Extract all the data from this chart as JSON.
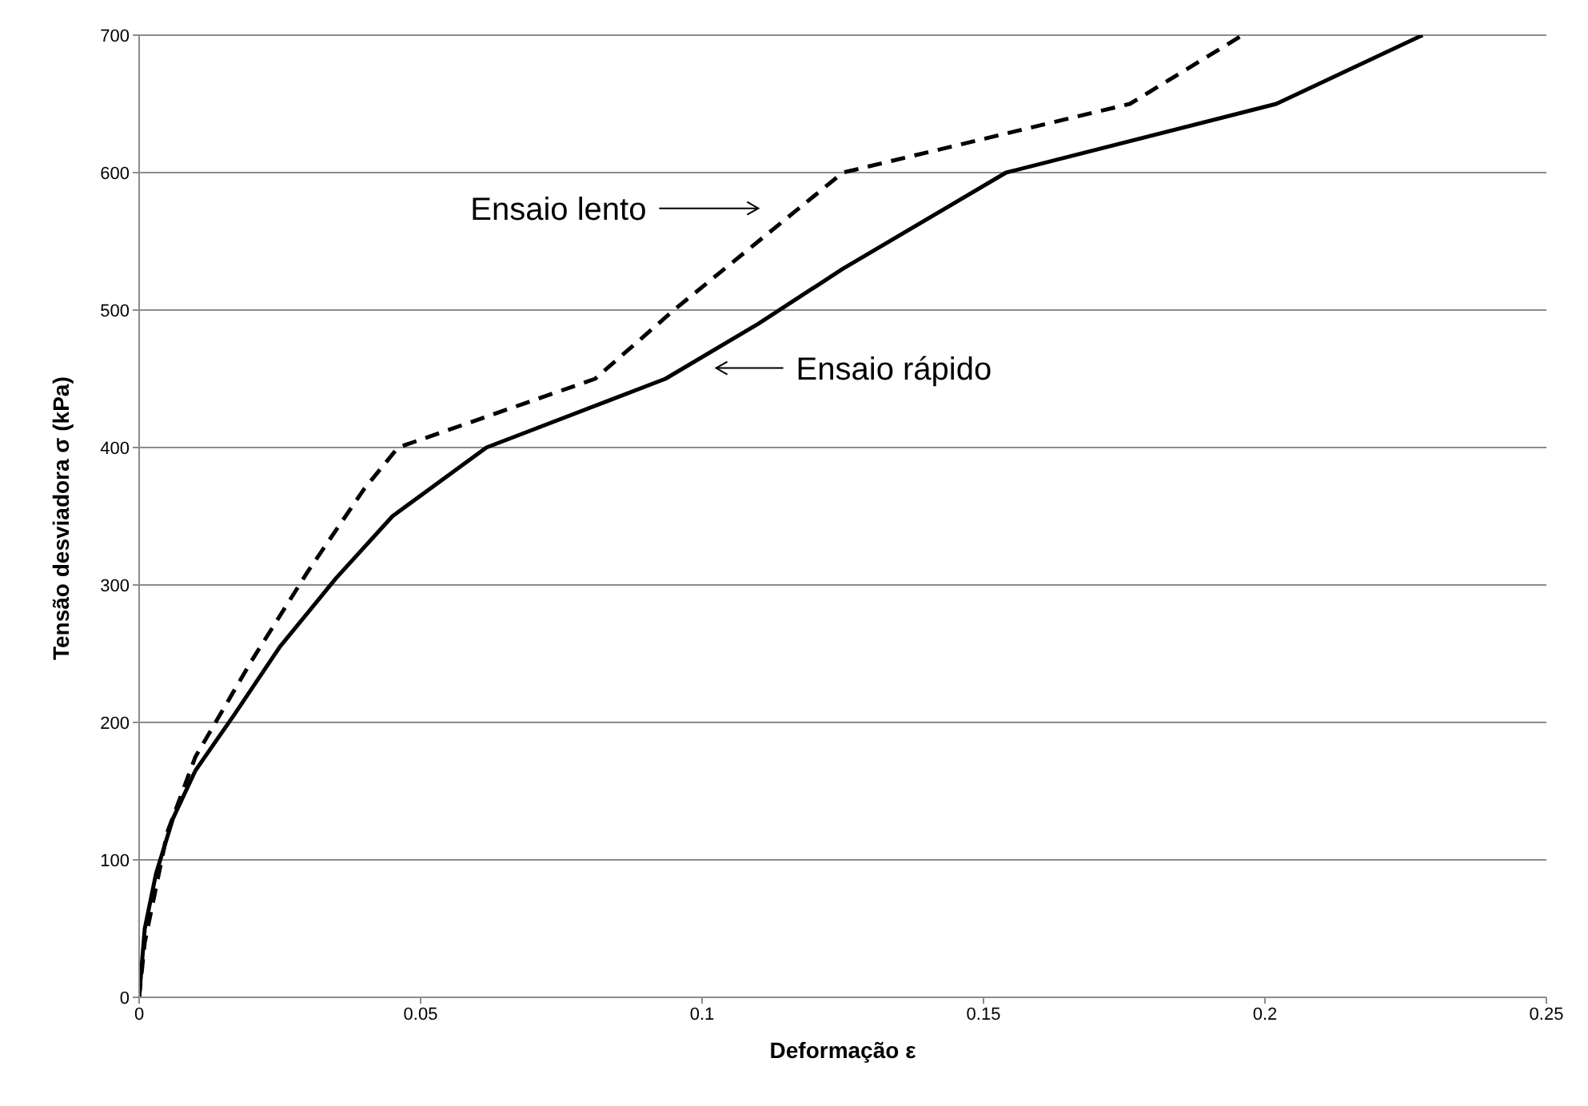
{
  "chart_data": {
    "type": "line",
    "xlabel": "Deformação ε",
    "ylabel": "Tensão desviadora σ (kPa)",
    "xlim": [
      0,
      0.25
    ],
    "xticks": [
      0,
      0.05,
      0.1,
      0.15,
      0.2,
      0.25
    ],
    "ylim": [
      0,
      700
    ],
    "yticks": [
      0,
      100,
      200,
      300,
      400,
      500,
      600,
      700
    ],
    "grid": "y",
    "legend": false,
    "marker": "none",
    "series": [
      {
        "color": "#000000",
        "line_style": "dashed",
        "x": [
          0,
          0.001,
          0.002,
          0.005,
          0.01,
          0.02,
          0.03,
          0.04,
          0.046,
          0.081,
          0.095,
          0.11,
          0.125,
          0.176,
          0.196
        ],
        "values": [
          0,
          40,
          60,
          120,
          175,
          245,
          310,
          370,
          400,
          450,
          500,
          550,
          600,
          650,
          700
        ]
      },
      {
        "color": "#000000",
        "line_style": "solid",
        "x": [
          0,
          0.001,
          0.003,
          0.006,
          0.01,
          0.0168,
          0.025,
          0.035,
          0.045,
          0.0617,
          0.0935,
          0.11,
          0.125,
          0.154,
          0.202,
          0.228
        ],
        "values": [
          0,
          50,
          90,
          130,
          165,
          205,
          255,
          305,
          350,
          400,
          450,
          490,
          530,
          600,
          650,
          700
        ]
      }
    ],
    "annotations": [
      "Ensaio lento",
      "Ensaio rápido"
    ]
  }
}
